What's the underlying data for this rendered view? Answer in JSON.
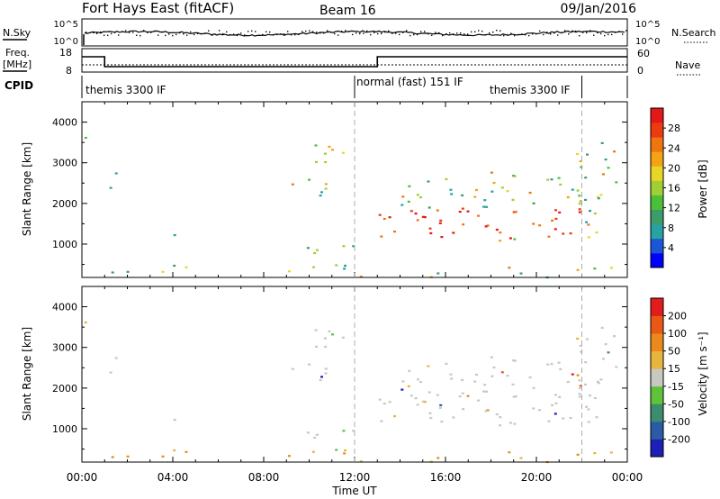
{
  "header": {
    "title": "Fort Hays East (fitACF)",
    "beam": "Beam 16",
    "date": "09/Jan/2016"
  },
  "noise_panel": {
    "left_label": "N.Sky",
    "left_ticks": [
      "10^5",
      "10^0"
    ],
    "right_ticks": [
      "10^5",
      "10^0"
    ],
    "right_label": "N.Search"
  },
  "freq_panel": {
    "left_label_1": "Freq.",
    "left_label_2": "[MHz]",
    "left_ticks": [
      "18",
      "8"
    ],
    "right_ticks": [
      "60",
      "0"
    ],
    "right_label": "Nave"
  },
  "cpid_panel": {
    "label": "CPID",
    "segments": [
      {
        "text": "themis 3300 IF",
        "start_hour": 0
      },
      {
        "text": "normal (fast) 151 IF",
        "start_hour": 12
      },
      {
        "text": "themis 3300 IF",
        "start_hour": 22
      }
    ],
    "boundaries_hours": [
      12,
      22
    ]
  },
  "chart_data": [
    {
      "type": "heatmap",
      "name": "power",
      "ylabel": "Slant Range [km]",
      "ylim": [
        180,
        4500
      ],
      "yticks": [
        1000,
        2000,
        3000,
        4000
      ],
      "colorbar": {
        "label": "Power [dB]",
        "ticks": [
          "4",
          "8",
          "12",
          "16",
          "20",
          "24",
          "28"
        ],
        "colors": [
          "#0000ff",
          "#1a56d6",
          "#27a1a1",
          "#3d9c69",
          "#4cbf3a",
          "#a0cf34",
          "#e8d627",
          "#f3a313",
          "#f07511",
          "#ec3b12",
          "#e31818"
        ]
      }
    },
    {
      "type": "heatmap",
      "name": "velocity",
      "ylabel": "Slant Range [km]",
      "ylim": [
        180,
        4500
      ],
      "yticks": [
        1000,
        2000,
        3000,
        4000
      ],
      "colorbar": {
        "label": "Velocity [m s⁻¹]",
        "ticks": [
          "200",
          "100",
          "50",
          "15",
          "-15",
          "-50",
          "-100",
          "-200"
        ],
        "colors": [
          "#1d20b5",
          "#2c5ba6",
          "#3c8c6e",
          "#5ec23a",
          "#c8c8c0",
          "#e5b53d",
          "#ea8a1c",
          "#e85a14",
          "#e01c1c"
        ]
      }
    }
  ],
  "time_axis": {
    "label": "Time UT",
    "ticks": [
      "00:00",
      "04:00",
      "08:00",
      "12:00",
      "16:00",
      "20:00",
      "00:00"
    ],
    "range_hours": [
      0,
      24
    ]
  }
}
